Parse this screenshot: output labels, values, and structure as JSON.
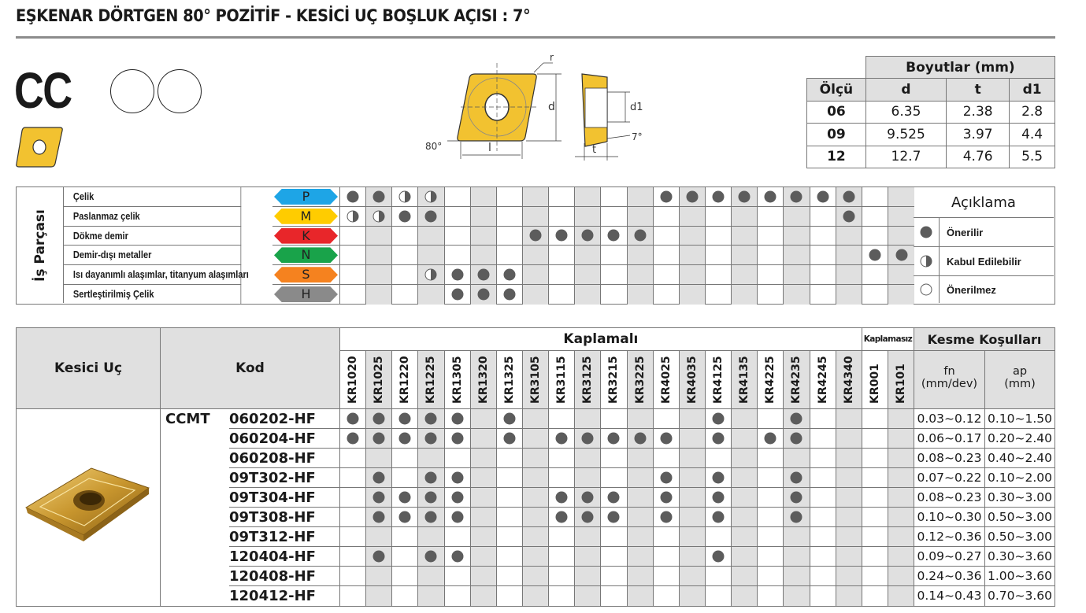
{
  "title": "EŞKENAR DÖRTGEN 80° POZİTİF - KESİCİ UÇ BOŞLUK AÇISI : 7°",
  "insert_shape_code": "CC",
  "diagram": {
    "labels": {
      "r": "r",
      "d": "d",
      "d1": "d1",
      "l": "l",
      "t": "t",
      "angle_corner": "80°",
      "angle_clearance": "7°"
    },
    "fill_color": "#f2c230"
  },
  "dimensions": {
    "group_header": "Boyutlar (mm)",
    "columns": [
      "Ölçü",
      "d",
      "t",
      "d1"
    ],
    "rows": [
      [
        "06",
        "6.35",
        "2.38",
        "2.8"
      ],
      [
        "09",
        "9.525",
        "3.97",
        "4.4"
      ],
      [
        "12",
        "12.7",
        "4.76",
        "5.5"
      ]
    ]
  },
  "grades": [
    "KR1020",
    "KR1025",
    "KR1220",
    "KR1225",
    "KR1305",
    "KR1320",
    "KR1325",
    "KR3105",
    "KR3115",
    "KR3125",
    "KR3215",
    "KR3225",
    "KR4025",
    "KR4035",
    "KR4125",
    "KR4135",
    "KR4225",
    "KR4235",
    "KR4245",
    "KR4340",
    "KR001",
    "KR101"
  ],
  "workpiece": {
    "label": "İş Parçası",
    "materials": [
      {
        "name": "Çelik",
        "code": "P",
        "color": "#1ea5e6",
        "recommended": [
          "KR1020",
          "KR1025",
          "KR4025",
          "KR4035",
          "KR4125",
          "KR4135",
          "KR4225",
          "KR4235",
          "KR4245",
          "KR4340"
        ],
        "acceptable": [
          "KR1220",
          "KR1225"
        ]
      },
      {
        "name": "Paslanmaz çelik",
        "code": "M",
        "color": "#ffcc00",
        "recommended": [
          "KR1220",
          "KR1225",
          "KR4340"
        ],
        "acceptable": [
          "KR1020",
          "KR1025"
        ]
      },
      {
        "name": "Dökme demir",
        "code": "K",
        "color": "#e8262a",
        "recommended": [
          "KR3105",
          "KR3115",
          "KR3125",
          "KR3215",
          "KR3225"
        ],
        "acceptable": []
      },
      {
        "name": "Demir-dışı metaller",
        "code": "N",
        "color": "#19a34a",
        "recommended": [
          "KR001",
          "KR101"
        ],
        "acceptable": []
      },
      {
        "name": "Isı dayanımlı alaşımlar, titanyum alaşımları",
        "code": "S",
        "color": "#f5821f",
        "recommended": [
          "KR1305",
          "KR1320",
          "KR1325"
        ],
        "acceptable": [
          "KR1225"
        ]
      },
      {
        "name": "Sertleştirilmiş Çelik",
        "code": "H",
        "color": "#8a8a8a",
        "recommended": [
          "KR1305",
          "KR1320",
          "KR1325"
        ],
        "acceptable": []
      }
    ]
  },
  "legend": {
    "title": "Açıklama",
    "items": [
      {
        "symbol": "full",
        "label": "Önerilir"
      },
      {
        "symbol": "half",
        "label": "Kabul Edilebilir"
      },
      {
        "symbol": "empty",
        "label": "Önerilmez"
      }
    ]
  },
  "products": {
    "headers": {
      "insert": "Kesici Uç",
      "code": "Kod",
      "coated": "Kaplamalı",
      "uncoated": "Kaplamasız",
      "conditions": "Kesme Koşulları",
      "fn": "fn\n(mm/dev)",
      "ap": "ap\n(mm)"
    },
    "family": "CCMT",
    "rows": [
      {
        "code": "060202-HF",
        "fn": "0.03~0.12",
        "ap": "0.10~1.50",
        "grades": [
          "KR1020",
          "KR1025",
          "KR1220",
          "KR1225",
          "KR1305",
          "KR1325",
          "KR4125",
          "KR4235"
        ]
      },
      {
        "code": "060204-HF",
        "fn": "0.06~0.17",
        "ap": "0.20~2.40",
        "grades": [
          "KR1020",
          "KR1025",
          "KR1220",
          "KR1225",
          "KR1305",
          "KR1325",
          "KR3115",
          "KR3125",
          "KR3215",
          "KR3225",
          "KR4025",
          "KR4125",
          "KR4225",
          "KR4235"
        ]
      },
      {
        "code": "060208-HF",
        "fn": "0.08~0.23",
        "ap": "0.40~2.40",
        "grades": []
      },
      {
        "code": "09T302-HF",
        "fn": "0.07~0.22",
        "ap": "0.10~2.00",
        "grades": [
          "KR1025",
          "KR1225",
          "KR1305",
          "KR4025",
          "KR4125",
          "KR4235"
        ]
      },
      {
        "code": "09T304-HF",
        "fn": "0.08~0.23",
        "ap": "0.30~3.00",
        "grades": [
          "KR1025",
          "KR1220",
          "KR1225",
          "KR1305",
          "KR3115",
          "KR3125",
          "KR3215",
          "KR4025",
          "KR4125",
          "KR4235"
        ]
      },
      {
        "code": "09T308-HF",
        "fn": "0.10~0.30",
        "ap": "0.50~3.00",
        "grades": [
          "KR1025",
          "KR1220",
          "KR1225",
          "KR1305",
          "KR3115",
          "KR3125",
          "KR3215",
          "KR4025",
          "KR4125",
          "KR4235"
        ]
      },
      {
        "code": "09T312-HF",
        "fn": "0.12~0.36",
        "ap": "0.50~3.00",
        "grades": []
      },
      {
        "code": "120404-HF",
        "fn": "0.09~0.27",
        "ap": "0.30~3.60",
        "grades": [
          "KR1025",
          "KR1225",
          "KR1305",
          "KR4125"
        ]
      },
      {
        "code": "120408-HF",
        "fn": "0.24~0.36",
        "ap": "1.00~3.60",
        "grades": []
      },
      {
        "code": "120412-HF",
        "fn": "0.14~0.43",
        "ap": "0.70~3.60",
        "grades": []
      }
    ]
  }
}
